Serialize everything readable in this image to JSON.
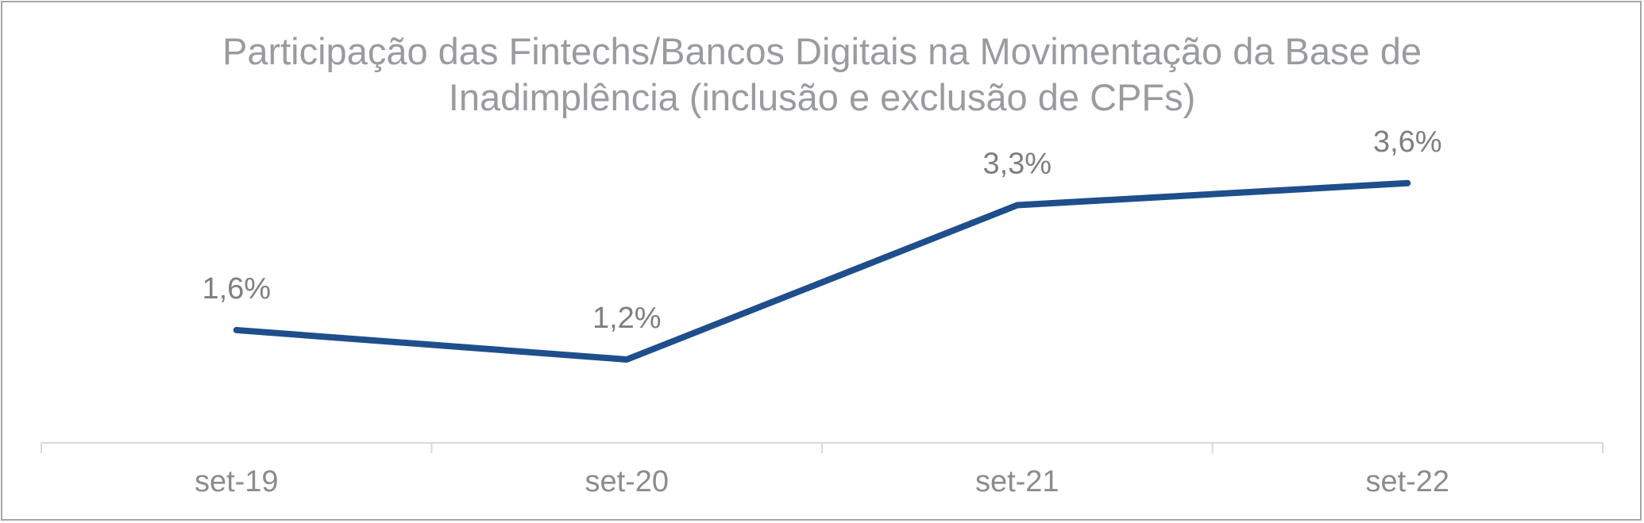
{
  "chart_data": {
    "type": "line",
    "title_line1": "Participação das Fintechs/Bancos Digitais na Movimentação da Base de",
    "title_line2": "Inadimplência (inclusão e exclusão de CPFs)",
    "categories": [
      "set-19",
      "set-20",
      "set-21",
      "set-22"
    ],
    "series": [
      {
        "values": [
          1.6,
          1.2,
          3.3,
          3.6
        ],
        "labels": [
          "1,6%",
          "1,2%",
          "3,3%",
          "3,6%"
        ],
        "color": "#1f4e8c"
      }
    ],
    "axis_color": "#d9d9d9",
    "grid": false,
    "legend": "none"
  }
}
